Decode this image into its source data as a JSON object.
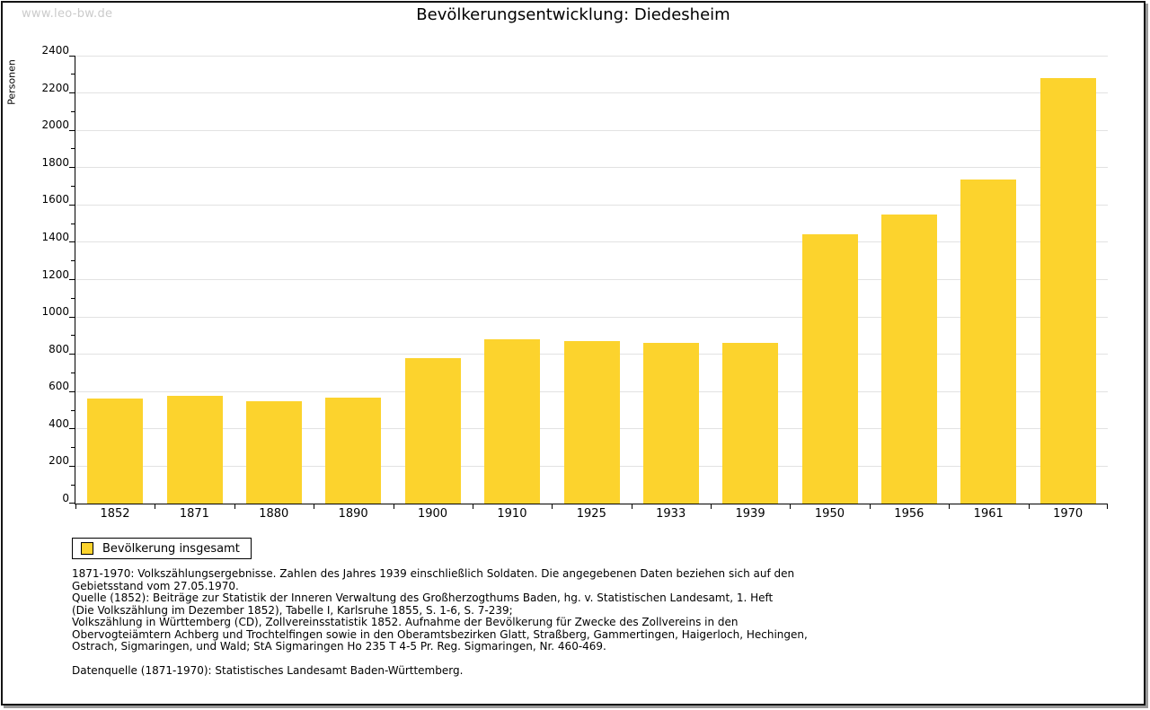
{
  "watermark": "www.leo-bw.de",
  "header": {
    "title": "Bevölkerungsentwicklung: Diedesheim"
  },
  "chart_data": {
    "type": "bar",
    "title": "Bevölkerungsentwicklung: Diedesheim",
    "xlabel": "",
    "ylabel": "Personen",
    "ylim": [
      0,
      2400
    ],
    "ytick_step": 200,
    "ytick_minor_step": 100,
    "grid": true,
    "legend_position": "bottom-left",
    "categories": [
      "1852",
      "1871",
      "1880",
      "1890",
      "1900",
      "1910",
      "1925",
      "1933",
      "1939",
      "1950",
      "1956",
      "1961",
      "1970"
    ],
    "series": [
      {
        "name": "Bevölkerung insgesamt",
        "values": [
          565,
          577,
          549,
          568,
          778,
          878,
          871,
          860,
          862,
          1443,
          1551,
          1736,
          2278
        ]
      }
    ]
  },
  "legend": {
    "label": "Bevölkerung insgesamt"
  },
  "footnotes": {
    "lines": [
      "1871-1970: Volkszählungsergebnisse. Zahlen des Jahres 1939 einschließlich Soldaten. Die angegebenen Daten beziehen sich auf den",
      "Gebietsstand vom 27.05.1970.",
      "Quelle (1852): Beiträge zur Statistik der Inneren Verwaltung des Großherzogthums Baden, hg. v. Statistischen Landesamt, 1. Heft",
      "(Die Volkszählung im Dezember 1852), Tabelle I, Karlsruhe 1855, S. 1-6, S. 7-239;",
      "Volkszählung in Württemberg (CD), Zollvereinsstatistik 1852. Aufnahme der Bevölkerung für Zwecke des Zollvereins in den",
      "Obervogteiämtern Achberg und Trochtelfingen sowie in den Oberamtsbezirken Glatt, Straßberg, Gammertingen, Haigerloch, Hechingen,",
      "Ostrach, Sigmaringen, und Wald; StA Sigmaringen Ho 235 T 4-5 Pr. Reg. Sigmaringen, Nr. 460-469.",
      "",
      "Datenquelle (1871-1970): Statistisches Landesamt Baden-Württemberg."
    ]
  },
  "colors": {
    "bar": "#fcd32d",
    "grid": "#e2e2e2",
    "axis": "#000000",
    "watermark": "#cbcbcb"
  }
}
